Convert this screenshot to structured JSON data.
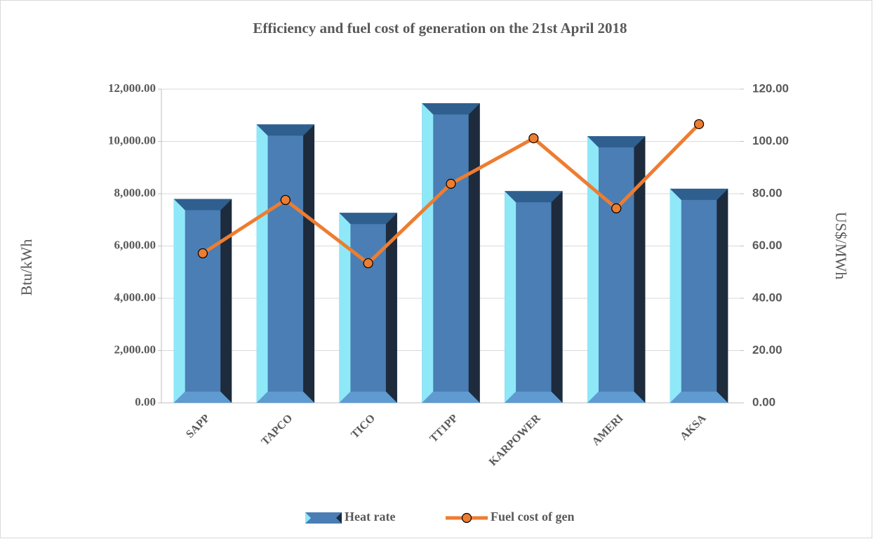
{
  "chart_data": {
    "type": "bar",
    "title": "Efficiency and fuel cost of generation on the 21st April 2018",
    "ylabel": "Btu/kWh",
    "y2label": "US$/MWh",
    "categories": [
      "SAPP",
      "TAPCO",
      "TICO",
      "TT1PP",
      "KARPOWER",
      "AMERI",
      "AKSA"
    ],
    "series": [
      {
        "name": "Heat rate",
        "type": "bar",
        "color": "#4a7eb4",
        "values": [
          7800,
          10650,
          7270,
          11460,
          8100,
          10200,
          8190
        ]
      },
      {
        "name": "Fuel cost of gen",
        "type": "line",
        "axis": "y2",
        "color": "#ed7d31",
        "values": [
          57.2,
          77.6,
          53.4,
          83.8,
          101.2,
          74.4,
          106.6
        ]
      }
    ],
    "ylim": [
      0,
      12000
    ],
    "yticks": [
      {
        "value": 0,
        "label": "0.00"
      },
      {
        "value": 2000,
        "label": "2,000.00"
      },
      {
        "value": 4000,
        "label": "4,000.00"
      },
      {
        "value": 6000,
        "label": "6,000.00"
      },
      {
        "value": 8000,
        "label": "8,000.00"
      },
      {
        "value": 10000,
        "label": "10,000.00"
      },
      {
        "value": 12000,
        "label": "12,000.00"
      }
    ],
    "y2lim": [
      0,
      120
    ],
    "y2ticks": [
      {
        "value": 0,
        "label": "0.00"
      },
      {
        "value": 20,
        "label": "20.00"
      },
      {
        "value": 40,
        "label": "40.00"
      },
      {
        "value": 60,
        "label": "60.00"
      },
      {
        "value": 80,
        "label": "80.00"
      },
      {
        "value": 100,
        "label": "100.00"
      },
      {
        "value": 120,
        "label": "120.00"
      }
    ],
    "grid": true,
    "legend": "bottom"
  }
}
